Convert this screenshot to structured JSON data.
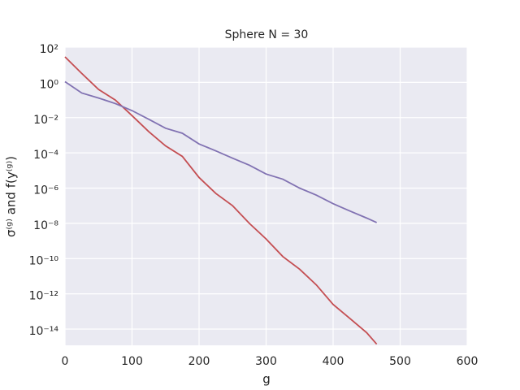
{
  "chart_data": {
    "type": "line",
    "title": "Sphere N = 30",
    "xlabel": "g",
    "ylabel": "σ⁽ᵍ⁾  and  f(y⁽ᵍ⁾)",
    "x": [
      0,
      25,
      50,
      75,
      100,
      125,
      150,
      175,
      200,
      225,
      250,
      275,
      300,
      325,
      350,
      375,
      400,
      425,
      450,
      465
    ],
    "series": [
      {
        "name": "f",
        "color": "#c44e52",
        "values": [
          28,
          3.2,
          0.4,
          0.1,
          0.013,
          0.0016,
          0.00025,
          6.3e-05,
          4e-06,
          5e-07,
          1e-07,
          1e-08,
          1.3e-09,
          1.3e-10,
          2.5e-11,
          3.2e-12,
          2.5e-13,
          4e-14,
          6.3e-15,
          1.4e-15
        ]
      },
      {
        "name": "sigma",
        "color": "#8172b2",
        "values": [
          1.1,
          0.25,
          0.13,
          0.063,
          0.025,
          0.008,
          0.0025,
          0.0013,
          0.00032,
          0.00013,
          5e-05,
          2e-05,
          6.3e-06,
          3.2e-06,
          1e-06,
          4e-07,
          1.3e-07,
          5e-08,
          2e-08,
          1.1e-08
        ]
      }
    ],
    "xlim": [
      0,
      600
    ],
    "xticks": [
      0,
      100,
      200,
      300,
      400,
      500,
      600
    ],
    "ylim": [
      1.2e-15,
      100
    ],
    "yscale": "log",
    "yticks": [
      {
        "value": 100,
        "label": "10²"
      },
      {
        "value": 1,
        "label": "10⁰"
      },
      {
        "value": 0.01,
        "label": "10⁻²"
      },
      {
        "value": 0.0001,
        "label": "10⁻⁴"
      },
      {
        "value": 1e-06,
        "label": "10⁻⁶"
      },
      {
        "value": 1e-08,
        "label": "10⁻⁸"
      },
      {
        "value": 1e-10,
        "label": "10⁻¹⁰"
      },
      {
        "value": 1e-12,
        "label": "10⁻¹²"
      },
      {
        "value": 1e-14,
        "label": "10⁻¹⁴"
      }
    ],
    "grid": true,
    "background": "#eaeaf2",
    "gridcolor": "#ffffff"
  }
}
